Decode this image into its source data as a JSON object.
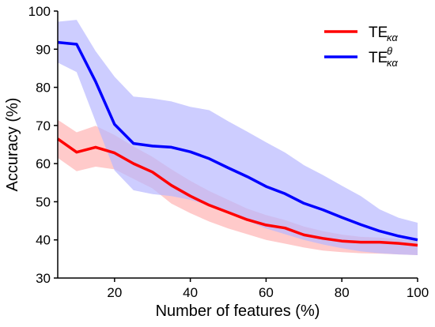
{
  "chart_data": {
    "type": "line",
    "xlabel": "Number of features (%)",
    "ylabel": "Accuracy (%)",
    "xlim": [
      5,
      100
    ],
    "ylim": [
      30,
      100
    ],
    "xticks": [
      20,
      40,
      60,
      80,
      100
    ],
    "yticks": [
      30,
      40,
      50,
      60,
      70,
      80,
      90,
      100
    ],
    "grid": false,
    "legend_position": "top-right",
    "x": [
      5,
      10,
      15,
      20,
      25,
      30,
      35,
      40,
      45,
      50,
      55,
      60,
      65,
      70,
      75,
      80,
      85,
      90,
      95,
      100
    ],
    "series": [
      {
        "name": "TE",
        "subscript": "κα",
        "superscript": "",
        "color": "#ff0000",
        "band_color": "#ffb3b3",
        "values": [
          66.5,
          63.0,
          64.3,
          62.8,
          60.0,
          57.8,
          54.3,
          51.5,
          49.1,
          47.2,
          45.3,
          43.9,
          43.1,
          41.3,
          40.4,
          39.7,
          39.4,
          39.4,
          39.1,
          38.6
        ],
        "upper": [
          71.5,
          68.2,
          69.9,
          67.5,
          64.5,
          61.8,
          58.5,
          55.5,
          52.8,
          50.5,
          48.2,
          46.5,
          45.2,
          43.5,
          42.3,
          41.4,
          40.8,
          40.6,
          40.2,
          39.8
        ],
        "lower": [
          61.5,
          58.0,
          59.2,
          58.5,
          56.0,
          53.5,
          49.5,
          47.0,
          44.8,
          43.0,
          41.5,
          40.0,
          39.0,
          38.0,
          37.2,
          36.8,
          36.5,
          36.4,
          36.2,
          36.0
        ]
      },
      {
        "name": "TE",
        "subscript": "κα",
        "superscript": "θ",
        "color": "#0000ff",
        "band_color": "#b8b8ff",
        "values": [
          91.8,
          91.3,
          81.5,
          70.3,
          65.3,
          64.6,
          64.3,
          63.1,
          61.3,
          58.9,
          56.6,
          54.0,
          52.1,
          49.6,
          47.9,
          45.9,
          44.0,
          42.3,
          41.0,
          40.0
        ],
        "upper": [
          97.2,
          97.7,
          89.5,
          82.8,
          77.6,
          77.1,
          76.3,
          74.9,
          74.0,
          71.1,
          68.4,
          65.6,
          62.9,
          59.6,
          57.0,
          54.2,
          51.5,
          48.0,
          45.8,
          44.5
        ],
        "lower": [
          86.5,
          84.0,
          71.0,
          58.2,
          53.0,
          52.0,
          51.5,
          50.5,
          49.0,
          47.0,
          45.0,
          43.0,
          41.5,
          40.0,
          38.8,
          37.8,
          37.0,
          36.5,
          36.2,
          36.0
        ]
      }
    ]
  }
}
